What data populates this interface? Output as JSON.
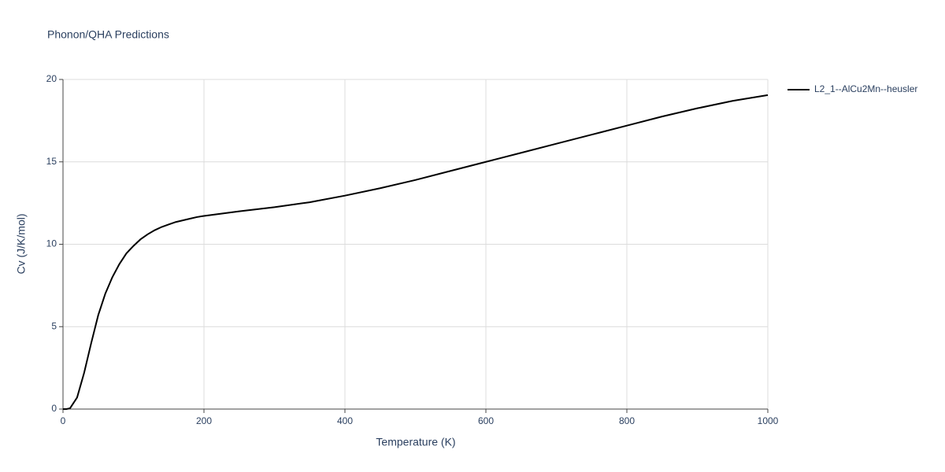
{
  "chart_data": {
    "type": "line",
    "title": "Phonon/QHA Predictions",
    "x_label": "Temperature (K)",
    "y_label": "Cv (J/K/mol)",
    "x": [
      0,
      5,
      10,
      20,
      30,
      40,
      50,
      60,
      70,
      80,
      90,
      100,
      110,
      120,
      130,
      140,
      150,
      160,
      170,
      180,
      190,
      200,
      250,
      300,
      350,
      400,
      450,
      500,
      550,
      600,
      650,
      700,
      750,
      800,
      850,
      900,
      950,
      1000
    ],
    "series": [
      {
        "name": "L2_1--AlCu2Mn--heusler",
        "color": "#000000",
        "values": [
          0,
          0,
          0.05,
          0.7,
          2.2,
          4.0,
          5.7,
          7.0,
          8.0,
          8.8,
          9.45,
          9.9,
          10.3,
          10.6,
          10.85,
          11.05,
          11.2,
          11.35,
          11.45,
          11.55,
          11.65,
          11.72,
          12.0,
          12.25,
          12.55,
          12.95,
          13.4,
          13.9,
          14.45,
          15.0,
          15.55,
          16.1,
          16.65,
          17.2,
          17.75,
          18.25,
          18.7,
          19.05
        ]
      }
    ],
    "xlim": [
      0,
      1000
    ],
    "xticks": [
      0,
      200,
      400,
      600,
      800,
      1000
    ],
    "ylim": [
      0,
      20
    ],
    "yticks": [
      0,
      5,
      10,
      15,
      20
    ],
    "grid": true,
    "legend": "right"
  }
}
